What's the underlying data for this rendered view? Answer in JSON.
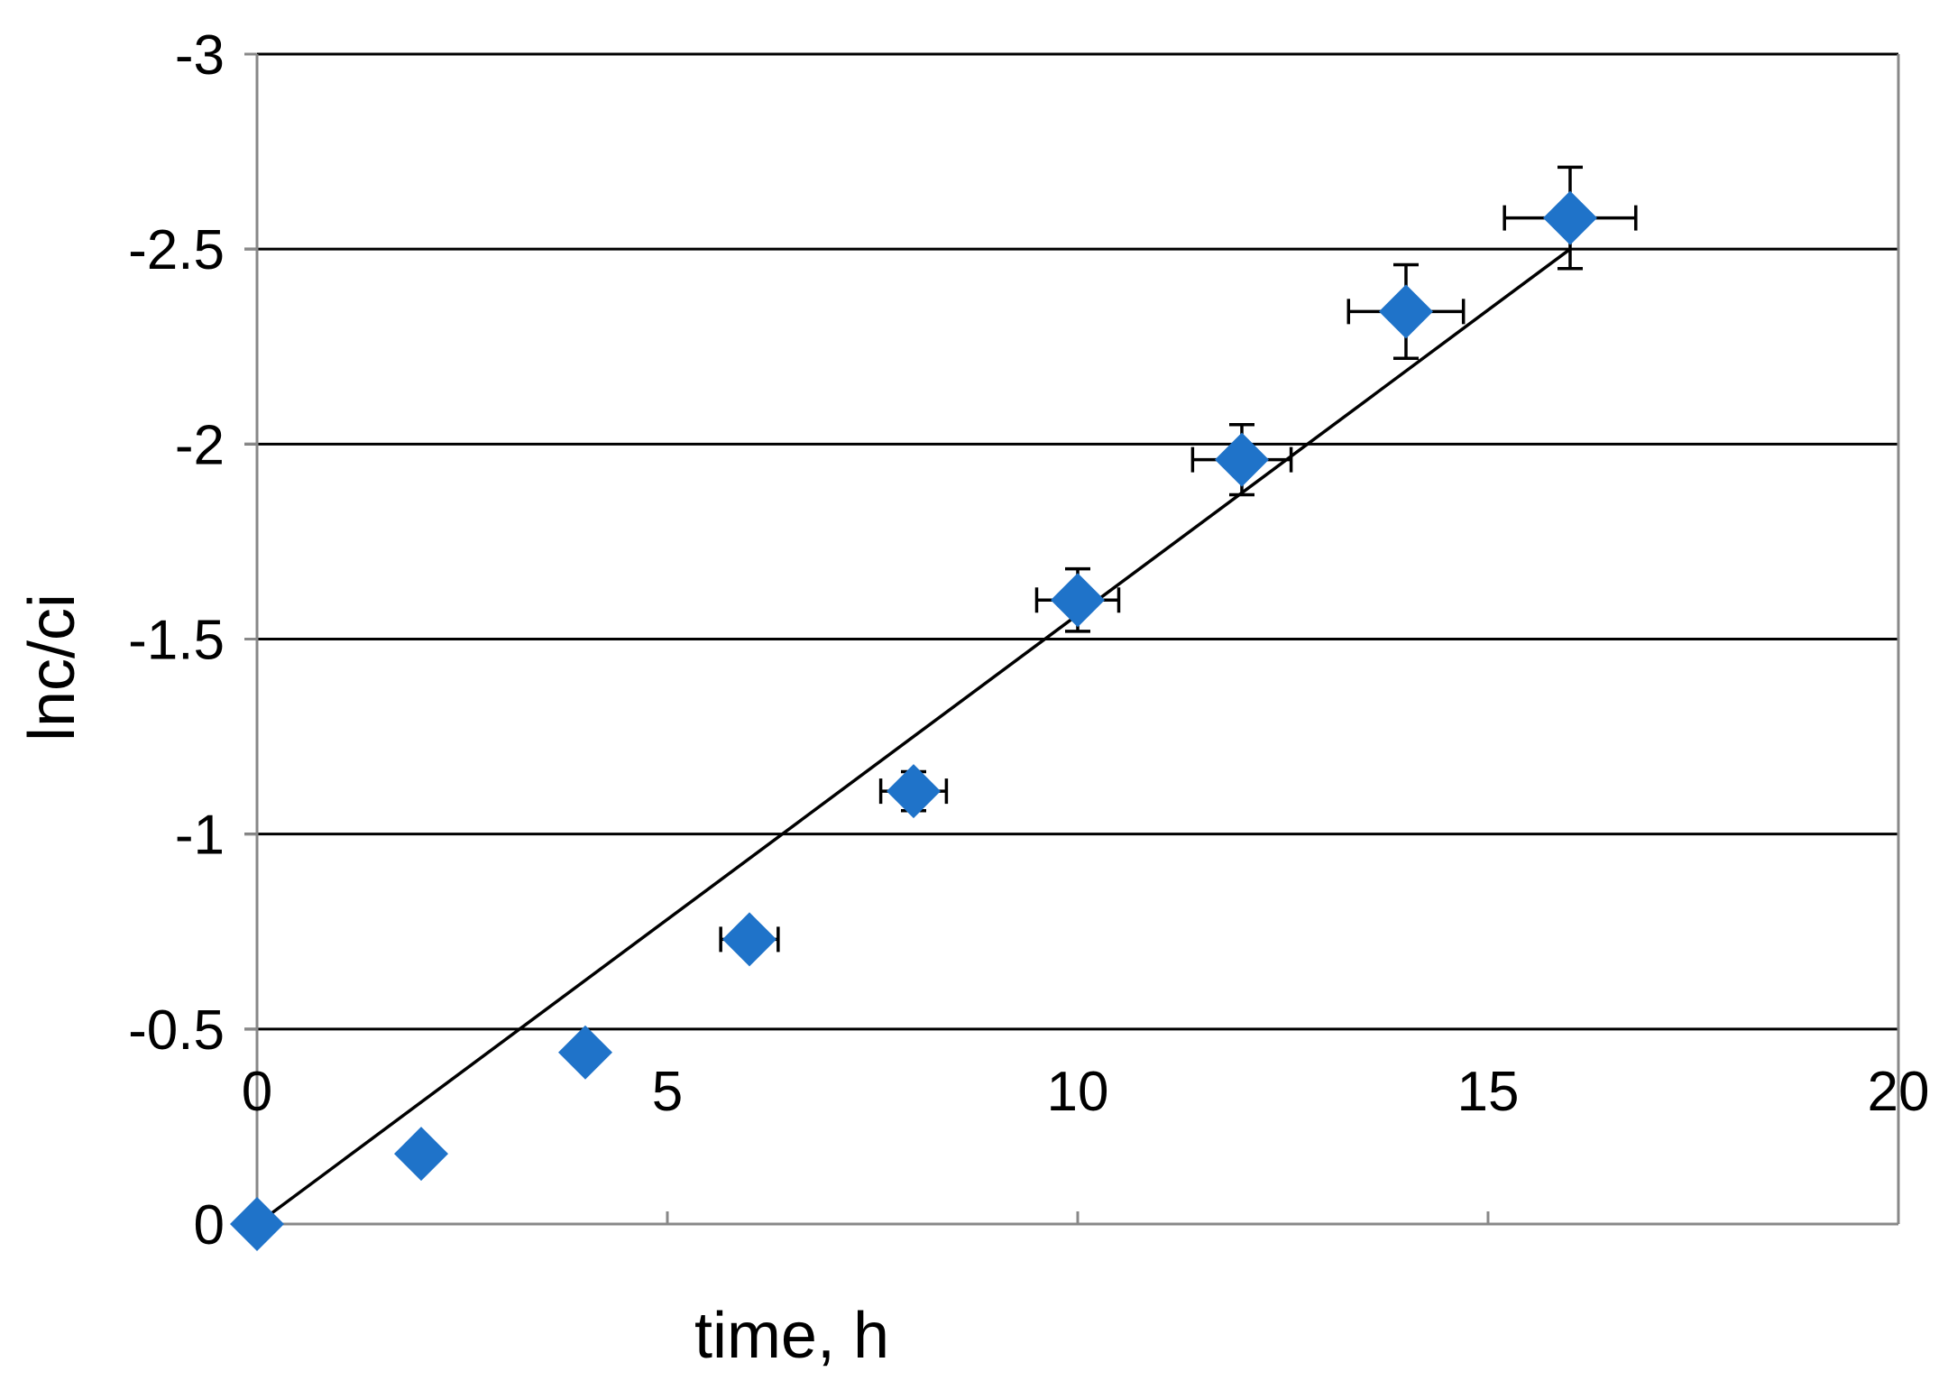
{
  "chart_data": {
    "type": "scatter",
    "title": "",
    "xlabel": "time, h",
    "ylabel": "lnc/ci",
    "xlim": [
      0,
      20
    ],
    "ylim": [
      0,
      -3
    ],
    "y_axis_reversed": true,
    "x_axis_position": "at y = -0.5",
    "grid": "horizontal",
    "legend": "none",
    "x_ticks": [
      "0",
      "5",
      "10",
      "15",
      "20"
    ],
    "x_tick_values": [
      0,
      5,
      10,
      15,
      20
    ],
    "y_ticks": [
      "0",
      "-0.5",
      "-1",
      "-1.5",
      "-2",
      "-2.5",
      "-3"
    ],
    "y_tick_values": [
      0,
      -0.5,
      -1,
      -1.5,
      -2,
      -2.5,
      -3
    ],
    "colors": {
      "marker": "#1f73c9",
      "trendline": "#000000",
      "grid": "#000000",
      "axis": "#888888",
      "error_bar": "#000000"
    },
    "series": [
      {
        "marker": "diamond",
        "points": [
          {
            "x": 0,
            "y": 0,
            "xerr": 0,
            "yerr": 0
          },
          {
            "x": 2,
            "y": -0.18,
            "xerr": 0,
            "yerr": 0
          },
          {
            "x": 4,
            "y": -0.44,
            "xerr": 0,
            "yerr": 0
          },
          {
            "x": 6,
            "y": -0.73,
            "xerr": 0.35,
            "yerr": 0.02
          },
          {
            "x": 8,
            "y": -1.11,
            "xerr": 0.4,
            "yerr": 0.05
          },
          {
            "x": 10,
            "y": -1.6,
            "xerr": 0.5,
            "yerr": 0.08
          },
          {
            "x": 12,
            "y": -1.96,
            "xerr": 0.6,
            "yerr": 0.09
          },
          {
            "x": 14,
            "y": -2.34,
            "xerr": 0.7,
            "yerr": 0.12
          },
          {
            "x": 16,
            "y": -2.58,
            "xerr": 0.8,
            "yerr": 0.13
          }
        ]
      }
    ],
    "trendline": {
      "type": "linear",
      "x": [
        0,
        16
      ],
      "y": [
        0,
        -2.5
      ]
    }
  }
}
